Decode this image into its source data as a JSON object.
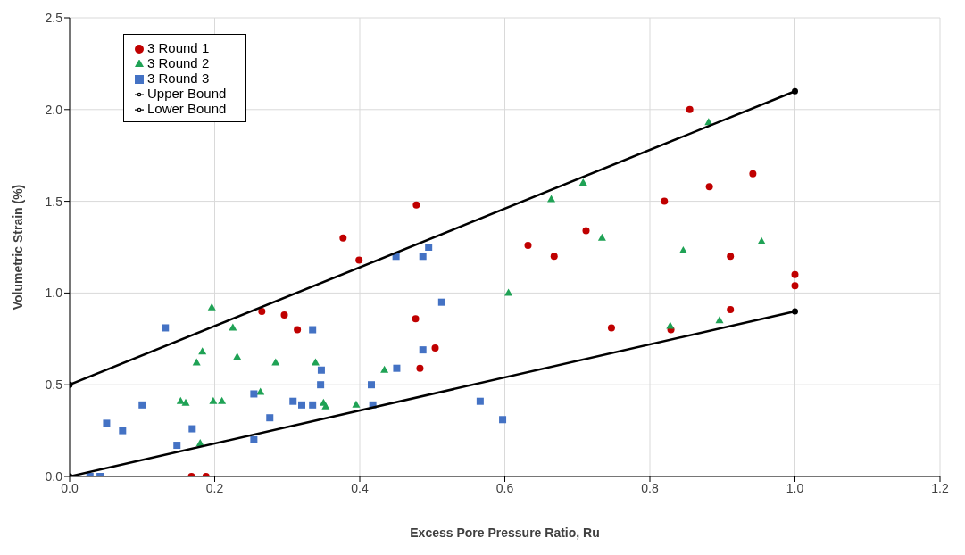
{
  "chart_data": {
    "type": "scatter",
    "xlabel": "Excess Pore Pressure Ratio, Ru",
    "ylabel": "Volumetric Strain (%)",
    "xlim": [
      0,
      1.2
    ],
    "xticks": [
      {
        "value": 0,
        "label": "0.0"
      },
      {
        "value": 0.2,
        "label": "0.2"
      },
      {
        "value": 0.4,
        "label": "0.4"
      },
      {
        "value": 0.6,
        "label": "0.6"
      },
      {
        "value": 0.8,
        "label": "0.8"
      },
      {
        "value": 1,
        "label": "1.0"
      },
      {
        "value": 1.2,
        "label": "1.2"
      }
    ],
    "ylim": [
      0,
      2.5
    ],
    "yticks": [
      {
        "value": 0,
        "label": "0.0"
      },
      {
        "value": 0.5,
        "label": "0.5"
      },
      {
        "value": 1,
        "label": "1.0"
      },
      {
        "value": 1.5,
        "label": "1.5"
      },
      {
        "value": 2,
        "label": "2.0"
      },
      {
        "value": 2.5,
        "label": "2.5"
      }
    ],
    "grid": true,
    "legend": "top left",
    "series": [
      {
        "name": "3 Round 1",
        "type": "scatter",
        "marker": "circle",
        "color": "#c00000",
        "x": [
          0.168,
          0.188,
          0.265,
          0.296,
          0.314,
          0.377,
          0.399,
          0.478,
          0.477,
          0.483,
          0.504,
          0.632,
          0.668,
          0.712,
          0.747,
          0.82,
          0.829,
          0.855,
          0.882,
          0.942,
          0.911,
          0.911,
          1.0,
          1.0
        ],
        "values": [
          0,
          0,
          0.9,
          0.88,
          0.8,
          1.3,
          1.18,
          1.48,
          0.86,
          0.59,
          0.7,
          1.26,
          1.2,
          1.34,
          0.81,
          1.5,
          0.8,
          2.0,
          1.58,
          1.65,
          1.2,
          0.91,
          1.1,
          1.04
        ]
      },
      {
        "name": "3 Round 2",
        "type": "scatter",
        "marker": "triangle",
        "color": "#1fa255",
        "x": [
          0.153,
          0.16,
          0.196,
          0.175,
          0.183,
          0.198,
          0.21,
          0.18,
          0.225,
          0.231,
          0.263,
          0.284,
          0.339,
          0.353,
          0.35,
          0.395,
          0.434,
          0.605,
          0.664,
          0.708,
          0.734,
          0.828,
          0.846,
          0.881,
          0.896,
          0.954
        ],
        "values": [
          0.41,
          0.4,
          0.92,
          0.62,
          0.68,
          0.41,
          0.41,
          0.18,
          0.81,
          0.65,
          0.46,
          0.62,
          0.62,
          0.38,
          0.4,
          0.39,
          0.58,
          1.0,
          1.51,
          1.6,
          1.3,
          0.82,
          1.23,
          1.93,
          0.85,
          1.28
        ]
      },
      {
        "name": "3 Round 3",
        "type": "scatter",
        "marker": "square",
        "color": "#4472c4",
        "x": [
          0.028,
          0.042,
          0.051,
          0.073,
          0.1,
          0.132,
          0.148,
          0.169,
          0.254,
          0.254,
          0.276,
          0.308,
          0.32,
          0.335,
          0.335,
          0.346,
          0.347,
          0.416,
          0.418,
          0.451,
          0.45,
          0.487,
          0.487,
          0.495,
          0.513,
          0.566,
          0.597
        ],
        "values": [
          0,
          0,
          0.29,
          0.25,
          0.39,
          0.81,
          0.17,
          0.26,
          0.45,
          0.2,
          0.32,
          0.41,
          0.39,
          0.39,
          0.8,
          0.5,
          0.58,
          0.5,
          0.39,
          0.59,
          1.2,
          1.2,
          0.69,
          1.25,
          0.95,
          0.41,
          0.31
        ]
      },
      {
        "name": "Upper Bound",
        "type": "line",
        "marker": "circle",
        "line_style": "solid",
        "color": "#000000",
        "x": [
          0,
          1
        ],
        "values": [
          0.5,
          2.1
        ]
      },
      {
        "name": "Lower Bound",
        "type": "line",
        "marker": "circle",
        "line_style": "solid",
        "color": "#000000",
        "x": [
          0,
          1
        ],
        "values": [
          0,
          0.9
        ]
      }
    ]
  }
}
